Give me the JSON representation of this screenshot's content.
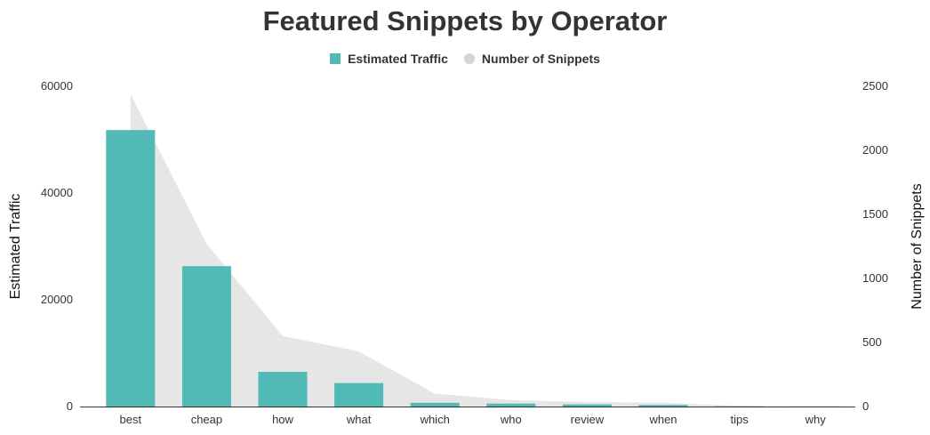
{
  "chart_data": {
    "type": "bar",
    "title": "Featured Snippets by Operator",
    "categories": [
      "best",
      "cheap",
      "how",
      "what",
      "which",
      "who",
      "review",
      "when",
      "tips",
      "why"
    ],
    "series": [
      {
        "name": "Estimated Traffic",
        "kind": "bar",
        "axis": "left",
        "color": "#52bab6",
        "values": [
          51800,
          26300,
          6500,
          4400,
          700,
          550,
          400,
          300,
          50,
          30
        ]
      },
      {
        "name": "Number of Snippets",
        "kind": "area",
        "axis": "right",
        "color": "#e6e6e6",
        "values": [
          2440,
          1270,
          550,
          430,
          100,
          50,
          35,
          30,
          5,
          2
        ]
      }
    ],
    "ylabel": "Estimated Traffic",
    "ylabel_right": "Number of Snippets",
    "ylim": [
      0,
      60000
    ],
    "ylim_right": [
      0,
      2500
    ],
    "yticks_left": [
      "0",
      "20000",
      "40000",
      "60000"
    ],
    "yticks_right": [
      "0",
      "500",
      "1000",
      "1500",
      "2000",
      "2500"
    ],
    "legend_position": "top-center",
    "grid": false
  }
}
